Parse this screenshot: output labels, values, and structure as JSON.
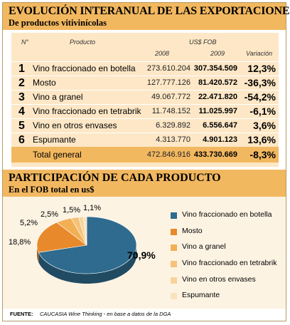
{
  "header": {
    "title": "EVOLUCIÓN INTERANUAL DE LAS EXPORTACIONES",
    "subtitle": "De productos vitivinícolas"
  },
  "table": {
    "col_num": "N°",
    "col_product": "Producto",
    "col_group": "US$ FOB",
    "col_2008": "2008",
    "col_2009": "2009",
    "col_var": "Variación",
    "rows": [
      {
        "num": "1",
        "product": "Vino fraccionado en botella",
        "v2008": "273.610.204",
        "v2009": "307.354.509",
        "var": "12,3%"
      },
      {
        "num": "2",
        "product": "Mosto",
        "v2008": "127.777.126",
        "v2009": "81.420.572",
        "var": "-36,3%"
      },
      {
        "num": "3",
        "product": "Vino a granel",
        "v2008": "49.067.772",
        "v2009": "22.471.820",
        "var": "-54,2%"
      },
      {
        "num": "4",
        "product": "Vino fraccionado en tetrabrik",
        "v2008": "11.748.152",
        "v2009": "11.025.997",
        "var": "-6,1%"
      },
      {
        "num": "5",
        "product": "Vino en otros envases",
        "v2008": "6.329.892",
        "v2009": "6.556.647",
        "var": "3,6%"
      },
      {
        "num": "6",
        "product": "Espumante",
        "v2008": "4.313.770",
        "v2009": "4.901.123",
        "var": "13,6%"
      }
    ],
    "total": {
      "product": "Total general",
      "v2008": "472.846.916",
      "v2009": "433.730.669",
      "var": "-8,3%"
    }
  },
  "section2": {
    "title": "PARTICIPACIÓN DE CADA PRODUCTO",
    "subtitle": "En el FOB total en us$"
  },
  "chart_data": {
    "type": "pie",
    "title": "PARTICIPACIÓN DE CADA PRODUCTO",
    "subtitle": "En el FOB total en us$",
    "categories": [
      "Vino fraccionado en botella",
      "Mosto",
      "Vino a granel",
      "Vino fraccionado en tetrabrik",
      "Vino en otros envases",
      "Espumante"
    ],
    "values": [
      70.9,
      18.8,
      5.2,
      2.5,
      1.5,
      1.1
    ],
    "labels": [
      "70,9%",
      "18,8%",
      "5,2%",
      "2,5%",
      "1,5%",
      "1,1%"
    ],
    "colors": [
      "#2f6b8e",
      "#e8892b",
      "#f2b055",
      "#f5c27a",
      "#f8d39c",
      "#fbe2bf"
    ],
    "legend": "right"
  },
  "footer": {
    "label": "FUENTE:",
    "text": "CAUCASIA Wine Thinking - en base a datos de la DGA"
  }
}
